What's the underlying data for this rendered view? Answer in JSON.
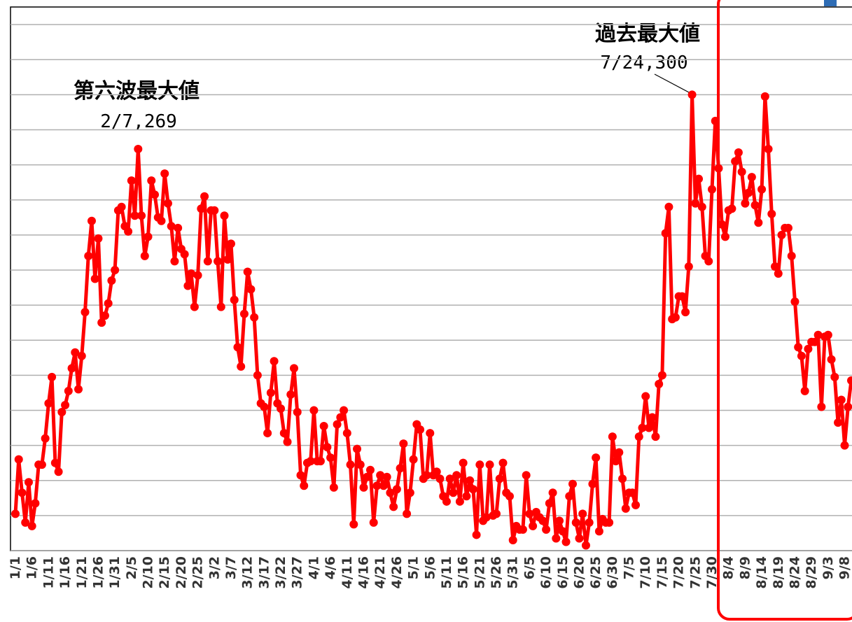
{
  "chart_data": {
    "type": "line",
    "categories": [
      "1/1",
      null,
      null,
      null,
      null,
      "1/6",
      null,
      null,
      null,
      null,
      "1/11",
      null,
      null,
      null,
      null,
      "1/16",
      null,
      null,
      null,
      null,
      "1/21",
      null,
      null,
      null,
      null,
      "1/26",
      null,
      null,
      null,
      null,
      "1/31",
      null,
      null,
      null,
      null,
      "2/5",
      null,
      null,
      null,
      null,
      "2/10",
      null,
      null,
      null,
      null,
      "2/15",
      null,
      null,
      null,
      null,
      "2/20",
      null,
      null,
      null,
      null,
      "2/25",
      null,
      null,
      null,
      null,
      "3/2",
      null,
      null,
      null,
      null,
      "3/7",
      null,
      null,
      null,
      null,
      "3/12",
      null,
      null,
      null,
      null,
      "3/17",
      null,
      null,
      null,
      null,
      "3/22",
      null,
      null,
      null,
      null,
      "3/27",
      null,
      null,
      null,
      null,
      "4/1",
      null,
      null,
      null,
      null,
      "4/6",
      null,
      null,
      null,
      null,
      "4/11",
      null,
      null,
      null,
      null,
      "4/16",
      null,
      null,
      null,
      null,
      "4/21",
      null,
      null,
      null,
      null,
      "4/26",
      null,
      null,
      null,
      null,
      "5/1",
      null,
      null,
      null,
      null,
      "5/6",
      null,
      null,
      null,
      null,
      "5/11",
      null,
      null,
      null,
      null,
      "5/16",
      null,
      null,
      null,
      null,
      "5/21",
      null,
      null,
      null,
      null,
      "5/26",
      null,
      null,
      null,
      null,
      "5/31",
      null,
      null,
      null,
      null,
      "6/5",
      null,
      null,
      null,
      null,
      "6/10",
      null,
      null,
      null,
      null,
      "6/15",
      null,
      null,
      null,
      null,
      "6/20",
      null,
      null,
      null,
      null,
      "6/25",
      null,
      null,
      null,
      null,
      "6/30",
      null,
      null,
      null,
      null,
      "7/5",
      null,
      null,
      null,
      null,
      "7/10",
      null,
      null,
      null,
      null,
      "7/15",
      null,
      null,
      null,
      null,
      "7/20",
      null,
      null,
      null,
      null,
      "7/25",
      null,
      null,
      null,
      null,
      "7/30",
      null,
      null,
      null,
      null,
      "8/4",
      null,
      null,
      null,
      null,
      "8/9",
      null,
      null,
      null,
      null,
      "8/14",
      null,
      null,
      null,
      null,
      "8/19",
      null,
      null,
      null,
      null,
      "8/24",
      null,
      null,
      null,
      null,
      "8/29",
      null,
      null,
      null,
      null,
      "9/3",
      null,
      null,
      null,
      null,
      "9/8",
      null,
      null
    ],
    "values": [
      61,
      92,
      73,
      56,
      79,
      54,
      67,
      89,
      89,
      104,
      124,
      139,
      90,
      85,
      119,
      123,
      131,
      144,
      153,
      132,
      151,
      176,
      208,
      228,
      195,
      218,
      170,
      174,
      181,
      194,
      200,
      234,
      236,
      225,
      222,
      251,
      231,
      269,
      231,
      208,
      219,
      251,
      243,
      230,
      228,
      255,
      238,
      225,
      205,
      224,
      212,
      209,
      191,
      198,
      179,
      197,
      235,
      242,
      205,
      234,
      234,
      205,
      179,
      231,
      206,
      215,
      183,
      156,
      145,
      175,
      199,
      189,
      173,
      140,
      124,
      122,
      107,
      130,
      148,
      124,
      121,
      107,
      102,
      129,
      144,
      119,
      83,
      77,
      90,
      91,
      120,
      91,
      91,
      111,
      99,
      93,
      76,
      112,
      116,
      120,
      107,
      89,
      55,
      98,
      89,
      76,
      82,
      86,
      56,
      77,
      83,
      77,
      82,
      73,
      65,
      75,
      87,
      101,
      61,
      73,
      92,
      112,
      109,
      81,
      83,
      107,
      83,
      85,
      81,
      71,
      68,
      81,
      73,
      83,
      68,
      90,
      71,
      80,
      75,
      49,
      89,
      57,
      59,
      89,
      60,
      61,
      81,
      90,
      73,
      71,
      46,
      54,
      52,
      52,
      83,
      61,
      54,
      62,
      59,
      57,
      52,
      67,
      73,
      47,
      57,
      51,
      45,
      71,
      78,
      56,
      47,
      61,
      43,
      56,
      78,
      93,
      51,
      58,
      56,
      56,
      105,
      91,
      96,
      81,
      64,
      73,
      73,
      66,
      105,
      110,
      128,
      110,
      116,
      105,
      135,
      140,
      221,
      236,
      172,
      173,
      185,
      185,
      176,
      202,
      300,
      238,
      252,
      236,
      208,
      205,
      246,
      285,
      258,
      226,
      219,
      234,
      235,
      262,
      267,
      256,
      238,
      244,
      253,
      237,
      227,
      246,
      299,
      269,
      232,
      202,
      198,
      220,
      224,
      224,
      208,
      182,
      156,
      151,
      131,
      155,
      159,
      159,
      163,
      122,
      162,
      163,
      149,
      139,
      113,
      126,
      100,
      122,
      137
    ],
    "color": "#ff0000",
    "ylim": [
      40,
      350
    ],
    "yticks": [
      40,
      60,
      80,
      100,
      120,
      140,
      160,
      180,
      200,
      220,
      240,
      260,
      280,
      300,
      320,
      340
    ],
    "grid": true,
    "annotations": [
      {
        "title": "第六波最大値",
        "label": "2/7,269"
      },
      {
        "title": "過去最大値",
        "label": "7/24,300"
      }
    ]
  }
}
